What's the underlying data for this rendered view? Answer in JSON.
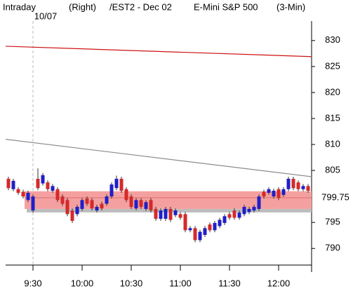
{
  "chart_data": {
    "type": "candlestick",
    "header": [
      "Intraday",
      "(Right)",
      "/EST2 - Dec 02",
      "E-Mini S&P 500",
      "(3-Min)"
    ],
    "date_marker": "10/07",
    "categories": [
      null,
      null,
      null,
      null,
      null,
      "9:30",
      null,
      null,
      null,
      null,
      null,
      null,
      null,
      null,
      null,
      "10:00",
      null,
      null,
      null,
      null,
      null,
      null,
      null,
      null,
      null,
      "10:30",
      null,
      null,
      null,
      null,
      null,
      null,
      null,
      null,
      null,
      "11:00",
      null,
      null,
      null,
      null,
      null,
      null,
      null,
      null,
      null,
      "11:30",
      null,
      null,
      null,
      null,
      null,
      null,
      null,
      null,
      null,
      "12:00",
      null,
      null,
      null,
      null,
      null,
      null
    ],
    "open": [
      803.4,
      801.4,
      801.4,
      800.9,
      799.3,
      797.3,
      803.4,
      802.5,
      802.7,
      801.1,
      801.4,
      800.0,
      799.3,
      797.3,
      796.6,
      797.6,
      799.6,
      799.3,
      797.3,
      798.6,
      798.6,
      800.0,
      801.6,
      803.4,
      801.4,
      800.0,
      797.7,
      799.3,
      797.6,
      799.3,
      797.6,
      795.7,
      795.7,
      797.6,
      796.4,
      796.6,
      796.6,
      793.5,
      793.9,
      791.6,
      792.6,
      794.6,
      793.5,
      794.3,
      794.9,
      796.6,
      797.3,
      795.9,
      796.6,
      797.0,
      797.3,
      797.6,
      800.9,
      800.7,
      800.0,
      801.4,
      800.3,
      801.4,
      803.4,
      802.7,
      801.4,
      802.0
    ],
    "high": [
      803.8,
      803.4,
      801.8,
      801.3,
      801.1,
      800.4,
      805.4,
      804.5,
      803.1,
      802.4,
      801.8,
      800.4,
      799.7,
      797.7,
      798.4,
      799.7,
      800.0,
      799.7,
      798.4,
      799.0,
      800.4,
      802.7,
      804.0,
      803.8,
      801.8,
      800.4,
      799.7,
      799.7,
      799.3,
      799.7,
      798.0,
      797.7,
      798.0,
      798.0,
      797.7,
      797.0,
      797.0,
      794.3,
      794.3,
      793.6,
      794.3,
      795.0,
      795.3,
      795.9,
      796.6,
      797.0,
      797.7,
      797.3,
      798.4,
      798.0,
      798.4,
      800.4,
      801.3,
      801.8,
      801.5,
      801.8,
      801.8,
      803.8,
      803.8,
      803.1,
      802.4,
      802.4
    ],
    "low": [
      801.2,
      801.0,
      800.3,
      799.6,
      798.9,
      796.9,
      801.2,
      802.1,
      801.0,
      800.7,
      798.9,
      798.2,
      796.2,
      794.9,
      796.2,
      797.2,
      798.2,
      797.3,
      796.9,
      797.3,
      798.2,
      799.6,
      801.2,
      800.7,
      798.9,
      797.6,
      797.3,
      797.6,
      797.2,
      796.9,
      795.3,
      795.3,
      795.3,
      795.1,
      796.0,
      795.5,
      793.1,
      793.1,
      791.2,
      791.2,
      792.2,
      793.1,
      793.1,
      793.9,
      794.5,
      795.5,
      795.5,
      795.5,
      796.2,
      796.6,
      796.9,
      797.2,
      799.6,
      800.3,
      799.6,
      799.3,
      799.9,
      801.0,
      801.2,
      801.0,
      801.0,
      800.7
    ],
    "close": [
      801.6,
      803.0,
      800.7,
      800.0,
      800.7,
      800.0,
      801.6,
      804.1,
      801.4,
      802.0,
      799.3,
      798.6,
      796.6,
      795.3,
      798.0,
      799.3,
      798.6,
      797.7,
      798.0,
      797.7,
      800.0,
      802.3,
      803.4,
      801.1,
      799.3,
      798.0,
      799.3,
      798.0,
      798.9,
      797.3,
      795.7,
      797.3,
      797.6,
      795.5,
      797.3,
      795.9,
      793.5,
      793.9,
      791.6,
      793.2,
      793.9,
      793.5,
      794.9,
      795.5,
      796.2,
      795.9,
      795.9,
      796.9,
      798.0,
      797.6,
      798.0,
      800.0,
      800.0,
      801.4,
      801.1,
      799.7,
      801.4,
      803.4,
      801.6,
      801.4,
      802.0,
      801.1
    ],
    "up_color": "#1f1fc8",
    "down_color": "#d42a2a",
    "lines": [
      {
        "color": "#cc1111",
        "start": 828.9,
        "end": 826.9
      },
      {
        "color": "#8c8c8c",
        "start": 811.0,
        "end": 803.8
      }
    ],
    "highlight": {
      "value": 799.75,
      "label": "799.75",
      "low": 797.6,
      "high": 801.0,
      "color": "#f5a0a0"
    },
    "ylim": [
      786.8,
      832.4
    ],
    "yticks": [
      790,
      795,
      805,
      810,
      815,
      820,
      825,
      830
    ]
  }
}
